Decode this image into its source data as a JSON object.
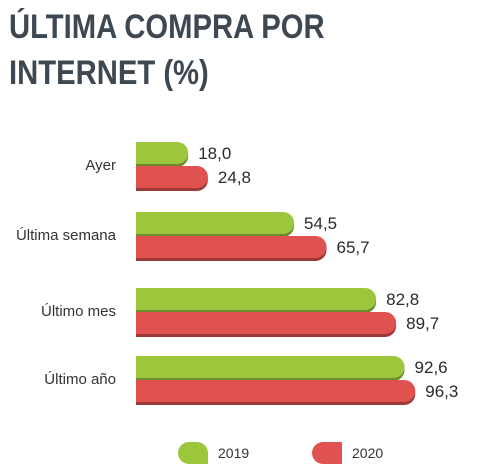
{
  "title_line1": "ÚLTIMA COMPRA POR",
  "title_line2": "INTERNET (%)",
  "chart_data": {
    "type": "bar",
    "orientation": "horizontal",
    "categories": [
      "Ayer",
      "Última semana",
      "Último mes",
      "Último año"
    ],
    "series": [
      {
        "name": "2019",
        "values": [
          18.0,
          54.5,
          82.8,
          92.6
        ],
        "labels": [
          "18,0",
          "54,5",
          "82,8",
          "92,6"
        ],
        "color": "#9cc73d"
      },
      {
        "name": "2020",
        "values": [
          24.8,
          65.7,
          89.7,
          96.3
        ],
        "labels": [
          "24,8",
          "65,7",
          "89,7",
          "96,3"
        ],
        "color": "#e0524f"
      }
    ],
    "xlim": [
      0,
      100
    ],
    "grid": false,
    "legend_position": "bottom"
  }
}
